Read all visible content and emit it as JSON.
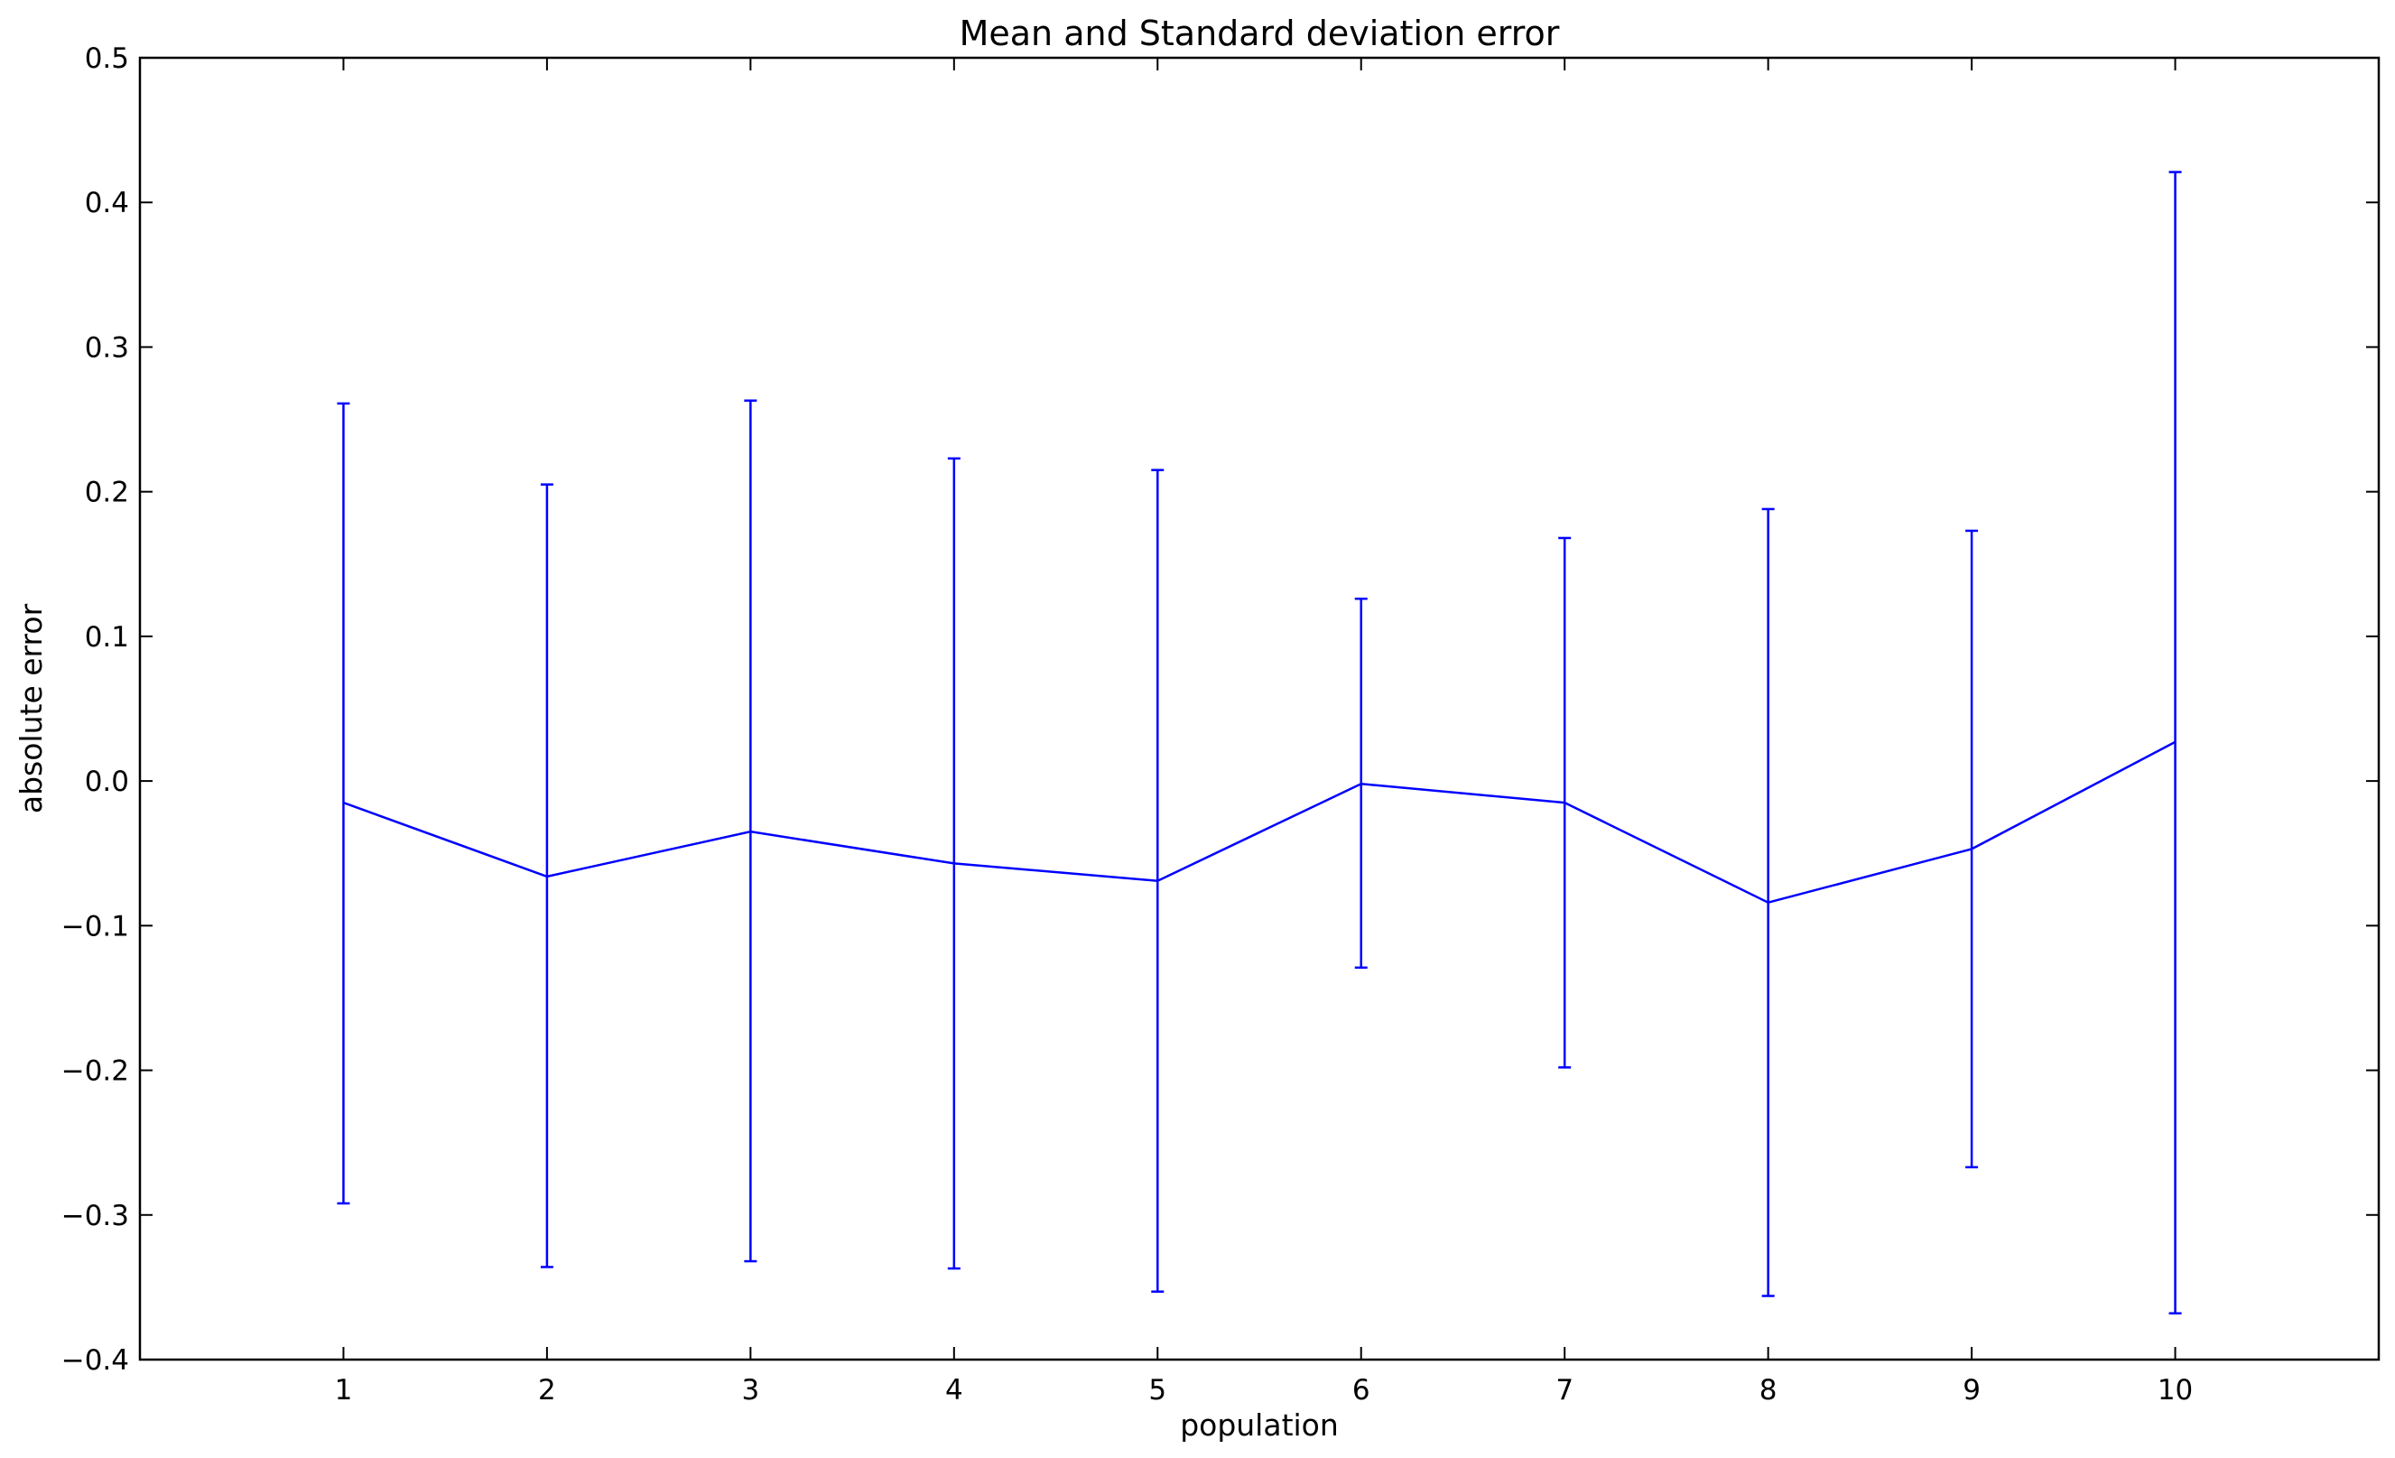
{
  "chart_data": {
    "type": "line",
    "title": "Mean and Standard deviation error",
    "xlabel": "population",
    "ylabel": "absolute error",
    "xlim": [
      0,
      11
    ],
    "ylim": [
      -0.4,
      0.5
    ],
    "x_ticks": [
      "1",
      "2",
      "3",
      "4",
      "5",
      "6",
      "7",
      "8",
      "9",
      "10"
    ],
    "y_ticks": [
      "−0.4",
      "−0.3",
      "−0.2",
      "−0.1",
      "0.0",
      "0.1",
      "0.2",
      "0.3",
      "0.4",
      "0.5"
    ],
    "x_tick_values": [
      1,
      2,
      3,
      4,
      5,
      6,
      7,
      8,
      9,
      10
    ],
    "y_tick_values": [
      -0.4,
      -0.3,
      -0.2,
      -0.1,
      0.0,
      0.1,
      0.2,
      0.3,
      0.4,
      0.5
    ],
    "grid": false,
    "series": [
      {
        "color": "#0000ff",
        "x": [
          1,
          2,
          3,
          4,
          5,
          6,
          7,
          8,
          9,
          10
        ],
        "mean": [
          -0.015,
          -0.066,
          -0.035,
          -0.057,
          -0.069,
          -0.002,
          -0.015,
          -0.084,
          -0.047,
          0.027
        ],
        "upper": [
          0.261,
          0.205,
          0.263,
          0.223,
          0.215,
          0.126,
          0.168,
          0.188,
          0.173,
          0.421
        ],
        "lower": [
          -0.292,
          -0.336,
          -0.332,
          -0.337,
          -0.353,
          -0.129,
          -0.198,
          -0.356,
          -0.267,
          -0.368
        ]
      }
    ]
  }
}
